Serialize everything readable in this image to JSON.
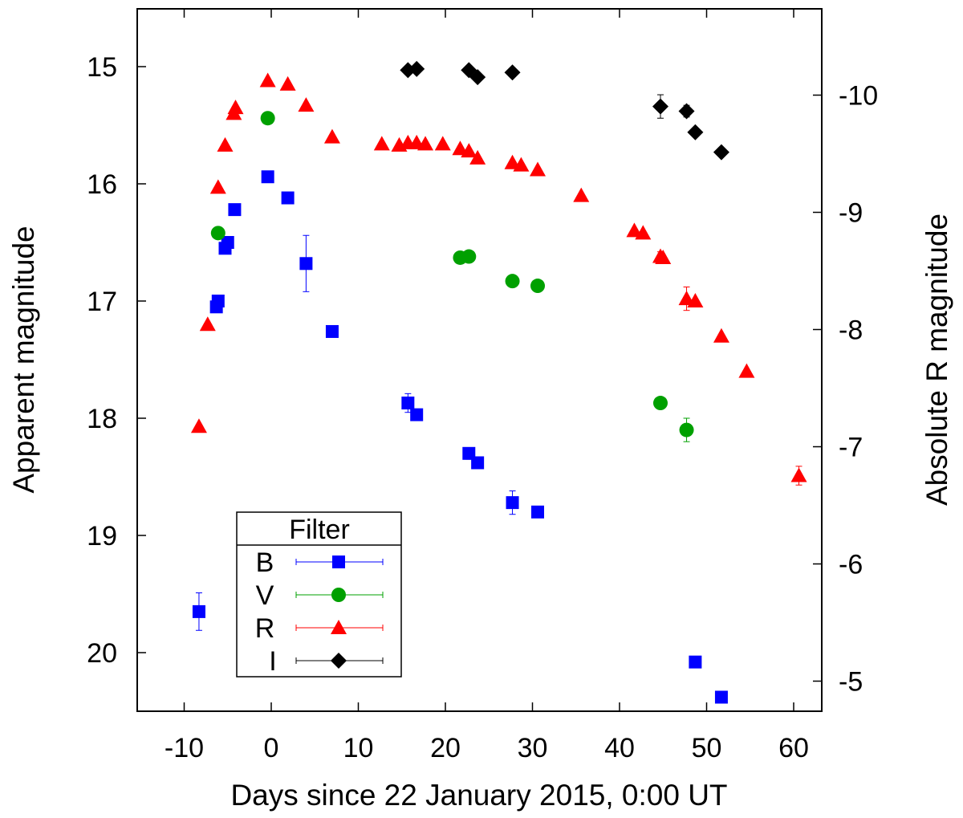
{
  "chart_data": {
    "type": "scatter",
    "title": "",
    "xlabel": "Days since 22 January 2015, 0:00 UT",
    "ylabel": "Apparent magnitude",
    "y2label": "Absolute R magnitude",
    "xlim": [
      -15,
      65
    ],
    "ylim": [
      20.5,
      14.5
    ],
    "y2lim": [
      -4.8,
      -10.8
    ],
    "y_inverted": true,
    "grid": false,
    "xticks": [
      "-10",
      "0",
      "10",
      "20",
      "30",
      "40",
      "50",
      "60"
    ],
    "yticks": [
      "15",
      "16",
      "17",
      "18",
      "19",
      "20"
    ],
    "y2ticks": [
      "-10",
      "-9",
      "-8",
      "-7",
      "-6",
      "-5"
    ],
    "legend": {
      "title": "Filter",
      "placement": "bottom-left"
    },
    "series": [
      {
        "name": "B",
        "marker": "square",
        "color": "#0000ff",
        "points": [
          {
            "x": -8.3,
            "y": 19.65,
            "err": 0.16
          },
          {
            "x": -6.3,
            "y": 17.05
          },
          {
            "x": -6.1,
            "y": 17.0
          },
          {
            "x": -5.3,
            "y": 16.55
          },
          {
            "x": -5.0,
            "y": 16.5
          },
          {
            "x": -4.2,
            "y": 16.22
          },
          {
            "x": -0.4,
            "y": 15.94
          },
          {
            "x": 1.9,
            "y": 16.12
          },
          {
            "x": 4.0,
            "y": 16.68,
            "err": 0.24
          },
          {
            "x": 7.0,
            "y": 17.26
          },
          {
            "x": 15.7,
            "y": 17.87,
            "err": 0.08
          },
          {
            "x": 16.7,
            "y": 17.97
          },
          {
            "x": 22.7,
            "y": 18.3,
            "err": 0.05
          },
          {
            "x": 23.7,
            "y": 18.38
          },
          {
            "x": 27.7,
            "y": 18.72,
            "err": 0.1
          },
          {
            "x": 30.6,
            "y": 18.8
          },
          {
            "x": 48.7,
            "y": 20.08
          },
          {
            "x": 51.7,
            "y": 20.38
          }
        ]
      },
      {
        "name": "V",
        "marker": "circle",
        "color": "#00a000",
        "points": [
          {
            "x": -6.1,
            "y": 16.42
          },
          {
            "x": -0.4,
            "y": 15.44
          },
          {
            "x": 21.7,
            "y": 16.63
          },
          {
            "x": 22.7,
            "y": 16.62
          },
          {
            "x": 27.7,
            "y": 16.83
          },
          {
            "x": 30.6,
            "y": 16.87
          },
          {
            "x": 44.7,
            "y": 17.87
          },
          {
            "x": 47.7,
            "y": 18.1,
            "err": 0.1
          }
        ]
      },
      {
        "name": "R",
        "marker": "triangle",
        "color": "#ff0000",
        "points": [
          {
            "x": -8.3,
            "y": 18.07
          },
          {
            "x": -7.3,
            "y": 17.2
          },
          {
            "x": -6.1,
            "y": 16.03
          },
          {
            "x": -5.3,
            "y": 15.67
          },
          {
            "x": -4.3,
            "y": 15.4
          },
          {
            "x": -4.1,
            "y": 15.35
          },
          {
            "x": -0.4,
            "y": 15.12
          },
          {
            "x": 1.9,
            "y": 15.15
          },
          {
            "x": 4.0,
            "y": 15.33
          },
          {
            "x": 7.0,
            "y": 15.6
          },
          {
            "x": 12.7,
            "y": 15.66
          },
          {
            "x": 14.7,
            "y": 15.67
          },
          {
            "x": 15.7,
            "y": 15.65
          },
          {
            "x": 16.7,
            "y": 15.65
          },
          {
            "x": 17.7,
            "y": 15.66
          },
          {
            "x": 19.7,
            "y": 15.66
          },
          {
            "x": 21.7,
            "y": 15.7
          },
          {
            "x": 22.7,
            "y": 15.72
          },
          {
            "x": 23.7,
            "y": 15.78
          },
          {
            "x": 27.7,
            "y": 15.82
          },
          {
            "x": 28.7,
            "y": 15.84
          },
          {
            "x": 30.6,
            "y": 15.88
          },
          {
            "x": 35.6,
            "y": 16.1
          },
          {
            "x": 41.7,
            "y": 16.4
          },
          {
            "x": 42.7,
            "y": 16.42
          },
          {
            "x": 44.7,
            "y": 16.62,
            "err": 0.04
          },
          {
            "x": 45.0,
            "y": 16.63
          },
          {
            "x": 47.7,
            "y": 16.98,
            "err": 0.1
          },
          {
            "x": 48.7,
            "y": 17.0
          },
          {
            "x": 51.7,
            "y": 17.3
          },
          {
            "x": 54.6,
            "y": 17.6
          },
          {
            "x": 60.6,
            "y": 18.49,
            "err": 0.08
          }
        ]
      },
      {
        "name": "I",
        "marker": "diamond",
        "color": "#000000",
        "points": [
          {
            "x": 15.7,
            "y": 15.03
          },
          {
            "x": 16.7,
            "y": 15.02
          },
          {
            "x": 22.7,
            "y": 15.03
          },
          {
            "x": 23.7,
            "y": 15.09
          },
          {
            "x": 27.7,
            "y": 15.05
          },
          {
            "x": 44.7,
            "y": 15.34,
            "err": 0.1
          },
          {
            "x": 47.7,
            "y": 15.38,
            "err": 0.05
          },
          {
            "x": 48.7,
            "y": 15.56
          },
          {
            "x": 51.7,
            "y": 15.73
          }
        ]
      }
    ]
  }
}
